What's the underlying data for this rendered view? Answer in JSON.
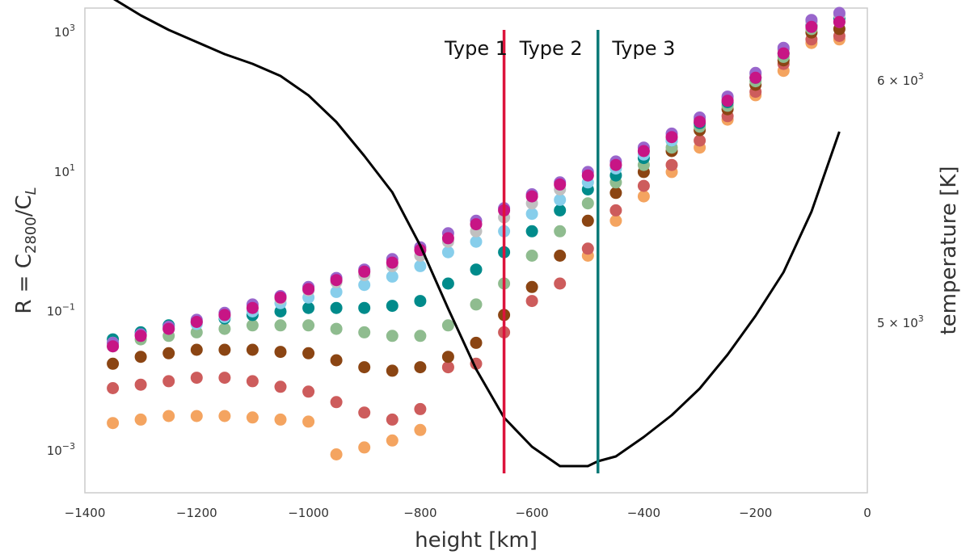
{
  "chart_data": {
    "type": "scatter",
    "xlabel": "height [km]",
    "ylabel": {
      "base": "R = C",
      "sub1": "2800",
      "mid": "/C",
      "sub2": "L"
    },
    "ylabel2": "temperature [K]",
    "xlim": [
      -1400,
      0
    ],
    "ylim_log10": [
      -3.6,
      3.35
    ],
    "xticks": [
      -1400,
      -1200,
      -1000,
      -800,
      -600,
      -400,
      -200,
      0
    ],
    "xtick_labels": [
      "−1400",
      "−1200",
      "−1000",
      "−800",
      "−600",
      "−400",
      "−200",
      "0"
    ],
    "yticks": [
      {
        "exp": -3,
        "label": {
          "base": "10",
          "exp": "−3"
        }
      },
      {
        "exp": -1,
        "label": {
          "base": "10",
          "exp": "−1"
        }
      },
      {
        "exp": 1,
        "label": {
          "base": "10",
          "exp": "1"
        }
      },
      {
        "exp": 3,
        "label": {
          "base": "10",
          "exp": "3"
        }
      }
    ],
    "temp_ylim": [
      4300,
      6300
    ],
    "y2ticks": [
      {
        "value": 5000,
        "label": {
          "base": "5 × 10",
          "exp": "3"
        }
      },
      {
        "value": 6000,
        "label": {
          "base": "6 × 10",
          "exp": "3"
        }
      }
    ],
    "vlines": [
      {
        "x": -650,
        "color": "#dc143c"
      },
      {
        "x": -482,
        "color": "#0a7a78"
      }
    ],
    "annotations": [
      {
        "text": "Type 1",
        "x": -700
      },
      {
        "text": "Type 2",
        "x": -566
      },
      {
        "text": "Type 3",
        "x": -400
      }
    ],
    "x": [
      -1350,
      -1300,
      -1250,
      -1200,
      -1150,
      -1100,
      -1050,
      -1000,
      -950,
      -900,
      -850,
      -800,
      -750,
      -700,
      -650,
      -600,
      -550,
      -500,
      -450,
      -400,
      -350,
      -300,
      -250,
      -200,
      -150,
      -100,
      -50
    ],
    "series": [
      {
        "name": "orange",
        "color": "#f4a460",
        "log10": [
          -2.6,
          -2.55,
          -2.5,
          -2.5,
          -2.5,
          -2.52,
          -2.55,
          -2.58,
          -3.05,
          -2.95,
          -2.85,
          -2.7,
          -1.8,
          -1.75,
          -1.3,
          -0.85,
          -0.35,
          -0.2,
          0.3,
          0.65,
          1.0,
          1.35,
          1.75,
          2.1,
          2.45,
          2.85,
          2.9
        ],
        "show": [
          1,
          1,
          1,
          1,
          1,
          1,
          1,
          1,
          1,
          1,
          1,
          1,
          1,
          0,
          0,
          0,
          0,
          1,
          1,
          1,
          1,
          1,
          1,
          1,
          1,
          1,
          1
        ]
      },
      {
        "name": "rose",
        "color": "#cd5c5c",
        "log10": [
          -2.1,
          -2.05,
          -2.0,
          -1.95,
          -1.95,
          -2.0,
          -2.08,
          -2.15,
          -2.3,
          -2.45,
          -2.55,
          -2.4,
          -1.8,
          -1.75,
          -1.3,
          -0.85,
          -0.6,
          -0.1,
          0.45,
          0.8,
          1.1,
          1.45,
          1.8,
          2.15,
          2.55,
          2.9,
          2.95
        ],
        "show": [
          1,
          1,
          1,
          1,
          1,
          1,
          1,
          1,
          1,
          1,
          1,
          1,
          1,
          1,
          1,
          1,
          1,
          1,
          1,
          1,
          1,
          1,
          1,
          1,
          1,
          1,
          1
        ]
      },
      {
        "name": "brown",
        "color": "#8b4513",
        "log10": [
          -1.75,
          -1.65,
          -1.6,
          -1.55,
          -1.55,
          -1.55,
          -1.58,
          -1.6,
          -1.7,
          -1.8,
          -1.85,
          -1.8,
          -1.65,
          -1.45,
          -1.05,
          -0.65,
          -0.2,
          0.3,
          0.7,
          1.0,
          1.3,
          1.6,
          1.9,
          2.25,
          2.6,
          3.0,
          3.05
        ],
        "show": [
          1,
          1,
          1,
          1,
          1,
          1,
          1,
          1,
          1,
          1,
          1,
          1,
          1,
          1,
          1,
          1,
          1,
          1,
          1,
          1,
          1,
          1,
          1,
          1,
          1,
          1,
          1
        ]
      },
      {
        "name": "sage",
        "color": "#8fbc8f",
        "log10": [
          -1.5,
          -1.4,
          -1.35,
          -1.3,
          -1.25,
          -1.2,
          -1.2,
          -1.2,
          -1.25,
          -1.3,
          -1.35,
          -1.35,
          -1.2,
          -0.9,
          -0.6,
          -0.2,
          0.15,
          0.55,
          0.85,
          1.1,
          1.35,
          1.65,
          1.95,
          2.3,
          2.65,
          3.05,
          3.15
        ],
        "show": [
          1,
          1,
          1,
          1,
          1,
          1,
          1,
          1,
          1,
          1,
          1,
          1,
          1,
          1,
          1,
          1,
          1,
          1,
          1,
          1,
          1,
          1,
          1,
          1,
          1,
          1,
          1
        ]
      },
      {
        "name": "teal",
        "color": "#008b8b",
        "log10": [
          -1.4,
          -1.3,
          -1.2,
          -1.15,
          -1.1,
          -1.05,
          -1.0,
          -0.95,
          -0.95,
          -0.95,
          -0.92,
          -0.85,
          -0.6,
          -0.4,
          -0.15,
          0.15,
          0.45,
          0.75,
          0.95,
          1.2,
          1.45,
          1.7,
          2.0,
          2.35,
          2.7,
          3.1,
          3.2
        ],
        "show": [
          1,
          1,
          1,
          1,
          1,
          1,
          1,
          1,
          1,
          1,
          1,
          1,
          1,
          1,
          1,
          1,
          1,
          1,
          1,
          1,
          1,
          1,
          1,
          1,
          1,
          1,
          1
        ]
      },
      {
        "name": "sky",
        "color": "#87ceeb",
        "log10": [
          -1.45,
          -1.33,
          -1.25,
          -1.18,
          -1.08,
          -1.0,
          -0.88,
          -0.8,
          -0.72,
          -0.62,
          -0.5,
          -0.35,
          -0.15,
          0.0,
          0.15,
          0.4,
          0.6,
          0.85,
          1.05,
          1.25,
          1.45,
          1.75,
          2.05,
          2.4,
          2.75,
          3.15,
          3.25
        ],
        "show": [
          1,
          1,
          1,
          1,
          1,
          1,
          1,
          1,
          1,
          1,
          1,
          1,
          1,
          1,
          1,
          1,
          1,
          1,
          1,
          1,
          1,
          1,
          1,
          1,
          1,
          1,
          1
        ]
      },
      {
        "name": "gray",
        "color": "#c0c0c0",
        "log10": [
          -1.45,
          -1.33,
          -1.25,
          -1.15,
          -1.05,
          -0.95,
          -0.82,
          -0.7,
          -0.58,
          -0.48,
          -0.35,
          -0.2,
          0.0,
          0.15,
          0.35,
          0.55,
          0.75,
          0.95,
          1.1,
          1.3,
          1.5,
          1.75,
          2.05,
          2.4,
          2.75,
          3.15,
          3.25
        ],
        "show": [
          1,
          1,
          1,
          1,
          1,
          1,
          1,
          1,
          1,
          1,
          1,
          1,
          1,
          1,
          1,
          1,
          1,
          1,
          1,
          1,
          1,
          1,
          1,
          1,
          1,
          1,
          1
        ]
      },
      {
        "name": "violet",
        "color": "#9966cc",
        "log10": [
          -1.45,
          -1.33,
          -1.22,
          -1.12,
          -1.02,
          -0.9,
          -0.78,
          -0.65,
          -0.52,
          -0.4,
          -0.25,
          -0.08,
          0.12,
          0.3,
          0.48,
          0.68,
          0.85,
          1.0,
          1.15,
          1.35,
          1.55,
          1.78,
          2.08,
          2.42,
          2.78,
          3.18,
          3.28
        ],
        "show": [
          1,
          1,
          1,
          1,
          1,
          1,
          1,
          1,
          1,
          1,
          1,
          1,
          1,
          1,
          1,
          1,
          1,
          1,
          1,
          1,
          1,
          1,
          1,
          1,
          1,
          1,
          1
        ]
      },
      {
        "name": "magenta",
        "color": "#c71585",
        "log10": [
          -1.5,
          -1.35,
          -1.25,
          -1.15,
          -1.05,
          -0.95,
          -0.8,
          -0.68,
          -0.55,
          -0.43,
          -0.3,
          -0.12,
          0.05,
          0.25,
          0.45,
          0.65,
          0.82,
          0.95,
          1.1,
          1.3,
          1.5,
          1.72,
          2.02,
          2.35,
          2.7,
          3.08,
          3.15
        ],
        "show": [
          1,
          1,
          1,
          1,
          1,
          1,
          1,
          1,
          1,
          1,
          1,
          1,
          1,
          1,
          1,
          1,
          1,
          1,
          1,
          1,
          1,
          1,
          1,
          1,
          1,
          1,
          1
        ]
      }
    ],
    "temperature": {
      "name": "temperature",
      "color": "#000000",
      "x": [
        -1350,
        -1300,
        -1250,
        -1200,
        -1150,
        -1100,
        -1050,
        -1000,
        -950,
        -900,
        -850,
        -800,
        -750,
        -700,
        -650,
        -600,
        -550,
        -500,
        -482,
        -450,
        -400,
        -350,
        -300,
        -250,
        -200,
        -150,
        -100,
        -50
      ],
      "y": [
        6340,
        6270,
        6210,
        6160,
        6110,
        6070,
        6020,
        5940,
        5830,
        5690,
        5540,
        5320,
        5060,
        4810,
        4610,
        4490,
        4410,
        4410,
        4430,
        4450,
        4530,
        4620,
        4730,
        4870,
        5030,
        5210,
        5460,
        5790
      ]
    }
  }
}
